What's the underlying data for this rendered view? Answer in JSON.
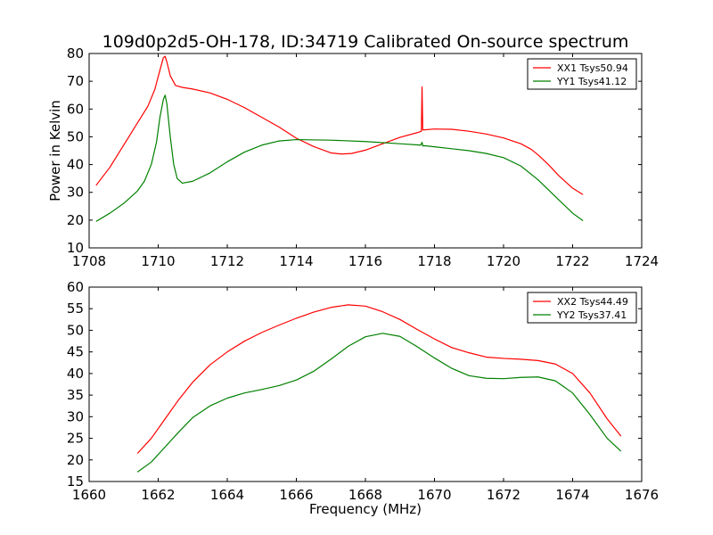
{
  "figure": {
    "title": "109d0p2d5-OH-178, ID:34719 Calibrated On-source spectrum",
    "xlabel": "Frequency (MHz)"
  },
  "chart_data": [
    {
      "type": "line",
      "title": "109d0p2d5-OH-178, ID:34719 Calibrated On-source spectrum",
      "xlabel": "",
      "ylabel": "Power in Kelvin",
      "xlim": [
        1708,
        1724
      ],
      "ylim": [
        10,
        80
      ],
      "xticks": [
        1708,
        1710,
        1712,
        1714,
        1716,
        1718,
        1720,
        1722,
        1724
      ],
      "yticks": [
        10,
        20,
        30,
        40,
        50,
        60,
        70,
        80
      ],
      "grid": false,
      "legend_position": "top-right",
      "series": [
        {
          "name": "XX1 Tsys50.94",
          "color": "#ff0000",
          "x": [
            1708.2,
            1708.6,
            1709.0,
            1709.4,
            1709.7,
            1709.9,
            1710.05,
            1710.15,
            1710.2,
            1710.25,
            1710.35,
            1710.5,
            1710.7,
            1711.0,
            1711.5,
            1712.0,
            1712.5,
            1713.0,
            1713.5,
            1714.0,
            1714.5,
            1715.0,
            1715.3,
            1715.6,
            1716.0,
            1716.5,
            1717.0,
            1717.5,
            1717.62,
            1717.64,
            1717.66,
            1717.7,
            1718.0,
            1718.5,
            1719.0,
            1719.5,
            1720.0,
            1720.5,
            1720.8,
            1721.0,
            1721.3,
            1721.6,
            1722.0,
            1722.3
          ],
          "y": [
            32.5,
            39,
            47,
            55,
            61,
            67,
            74,
            78.5,
            79,
            77,
            72,
            68.5,
            67.8,
            67.2,
            65.8,
            63.5,
            60.5,
            57,
            53.5,
            49.5,
            46.5,
            44.2,
            43.8,
            44,
            45.2,
            47.5,
            49.8,
            51.5,
            52,
            68,
            52.5,
            52.5,
            52.8,
            52.7,
            52,
            51,
            49.6,
            47.5,
            45.5,
            43.5,
            40,
            36,
            31.5,
            29.2
          ]
        },
        {
          "name": "YY1 Tsys41.12",
          "color": "#008000",
          "x": [
            1708.2,
            1708.6,
            1709.0,
            1709.4,
            1709.6,
            1709.8,
            1709.95,
            1710.05,
            1710.15,
            1710.2,
            1710.25,
            1710.35,
            1710.45,
            1710.55,
            1710.7,
            1711.0,
            1711.5,
            1712.0,
            1712.5,
            1713.0,
            1713.5,
            1714.0,
            1715.0,
            1716.0,
            1717.0,
            1717.6,
            1717.64,
            1717.66,
            1717.7,
            1718.0,
            1718.5,
            1719.0,
            1719.5,
            1720.0,
            1720.5,
            1721.0,
            1721.5,
            1722.0,
            1722.3
          ],
          "y": [
            19.5,
            22.5,
            26,
            30.5,
            34,
            40,
            48,
            57,
            63.5,
            65,
            62,
            50,
            40,
            35,
            33.3,
            34,
            37,
            41,
            44.5,
            47,
            48.5,
            49,
            48.8,
            48.3,
            47.5,
            47,
            48,
            46.7,
            46.8,
            46.4,
            45.7,
            45,
            44,
            42.5,
            39.5,
            34.5,
            28.5,
            22.5,
            19.8
          ]
        }
      ]
    },
    {
      "type": "line",
      "title": "",
      "xlabel": "Frequency (MHz)",
      "ylabel": "",
      "xlim": [
        1660,
        1676
      ],
      "ylim": [
        15,
        60
      ],
      "xticks": [
        1660,
        1662,
        1664,
        1666,
        1668,
        1670,
        1672,
        1674,
        1676
      ],
      "yticks": [
        15,
        20,
        25,
        30,
        35,
        40,
        45,
        50,
        55,
        60
      ],
      "grid": false,
      "legend_position": "top-right",
      "series": [
        {
          "name": "XX2 Tsys44.49",
          "color": "#ff0000",
          "x": [
            1661.4,
            1661.8,
            1662.2,
            1662.6,
            1663.0,
            1663.5,
            1664.0,
            1664.5,
            1665.0,
            1665.5,
            1666.0,
            1666.5,
            1667.0,
            1667.5,
            1668.0,
            1668.5,
            1669.0,
            1669.5,
            1670.0,
            1670.5,
            1671.0,
            1671.5,
            1672.0,
            1672.5,
            1673.0,
            1673.5,
            1674.0,
            1674.5,
            1675.0,
            1675.4
          ],
          "y": [
            21.5,
            25,
            29.5,
            34,
            38,
            42,
            45,
            47.5,
            49.5,
            51.2,
            52.8,
            54.2,
            55.3,
            55.9,
            55.6,
            54.3,
            52.5,
            50.2,
            48,
            46,
            44.8,
            43.8,
            43.5,
            43.3,
            43,
            42.2,
            40,
            35.5,
            29.5,
            25.5
          ]
        },
        {
          "name": "YY2 Tsys37.41",
          "color": "#008000",
          "x": [
            1661.4,
            1661.8,
            1662.2,
            1662.6,
            1663.0,
            1663.5,
            1664.0,
            1664.5,
            1665.0,
            1665.5,
            1666.0,
            1666.5,
            1667.0,
            1667.5,
            1668.0,
            1668.5,
            1669.0,
            1669.5,
            1670.0,
            1670.5,
            1671.0,
            1671.5,
            1672.0,
            1672.5,
            1673.0,
            1673.5,
            1674.0,
            1674.5,
            1675.0,
            1675.4
          ],
          "y": [
            17.2,
            19.5,
            23,
            26.5,
            29.8,
            32.5,
            34.3,
            35.5,
            36.3,
            37.2,
            38.5,
            40.5,
            43.3,
            46.3,
            48.5,
            49.3,
            48.6,
            46.2,
            43.6,
            41.2,
            39.5,
            38.9,
            38.8,
            39.1,
            39.2,
            38.3,
            35.5,
            30.5,
            25,
            22
          ]
        }
      ]
    }
  ]
}
